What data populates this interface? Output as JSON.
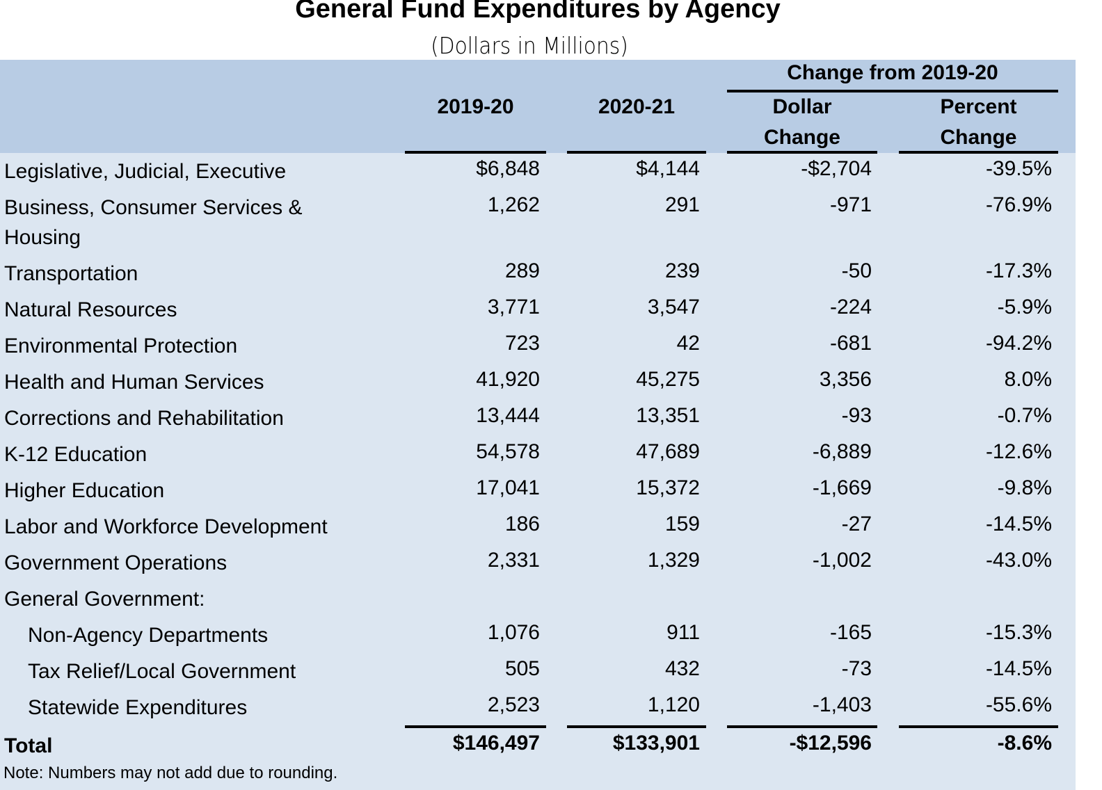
{
  "title": "General Fund Expenditures by Agency",
  "subtitle": "(Dollars in Millions)",
  "header": {
    "group": "Change from  2019-20",
    "col1": "2019-20",
    "col2": "2020-21",
    "col3a": "Dollar",
    "col3b": "Change",
    "col4a": "Percent",
    "col4b": "Change"
  },
  "rows": [
    {
      "label": "Legislative, Judicial, Executive",
      "v": [
        "$6,848",
        "$4,144",
        "-$2,704",
        "-39.5%"
      ]
    },
    {
      "label": "Business, Consumer Services &",
      "label2": "Housing",
      "v": [
        "1,262",
        "291",
        "-971",
        "-76.9%"
      ]
    },
    {
      "label": "Transportation",
      "v": [
        "289",
        "239",
        "-50",
        "-17.3%"
      ]
    },
    {
      "label": "Natural Resources",
      "v": [
        "3,771",
        "3,547",
        "-224",
        "-5.9%"
      ]
    },
    {
      "label": "Environmental Protection",
      "v": [
        "723",
        "42",
        "-681",
        "-94.2%"
      ]
    },
    {
      "label": "Health and Human Services",
      "v": [
        "41,920",
        "45,275",
        "3,356",
        "8.0%"
      ]
    },
    {
      "label": "Corrections and Rehabilitation",
      "v": [
        "13,444",
        "13,351",
        "-93",
        "-0.7%"
      ]
    },
    {
      "label": "K-12 Education",
      "v": [
        "54,578",
        "47,689",
        "-6,889",
        "-12.6%"
      ]
    },
    {
      "label": "Higher Education",
      "v": [
        "17,041",
        "15,372",
        "-1,669",
        "-9.8%"
      ]
    },
    {
      "label": "Labor and Workforce Development",
      "v": [
        "186",
        "159",
        "-27",
        "-14.5%"
      ]
    },
    {
      "label": "Government Operations",
      "v": [
        "2,331",
        "1,329",
        "-1,002",
        "-43.0%"
      ]
    },
    {
      "label": "General Government:",
      "v": [
        "",
        "",
        "",
        ""
      ]
    },
    {
      "label": "Non-Agency Departments",
      "indent": true,
      "v": [
        "1,076",
        "911",
        "-165",
        "-15.3%"
      ]
    },
    {
      "label": "Tax Relief/Local Government",
      "indent": true,
      "v": [
        "505",
        "432",
        "-73",
        "-14.5%"
      ]
    },
    {
      "label": "Statewide Expenditures",
      "indent": true,
      "v": [
        "2,523",
        "1,120",
        "-1,403",
        "-55.6%"
      ]
    }
  ],
  "total": {
    "label": "Total",
    "v": [
      "$146,497",
      "$133,901",
      "-$12,596",
      "-8.6%"
    ]
  },
  "note": "Note: Numbers may not add due to rounding.",
  "colors": {
    "header_bg": "#b8cce4",
    "body_bg": "#dce6f1"
  }
}
